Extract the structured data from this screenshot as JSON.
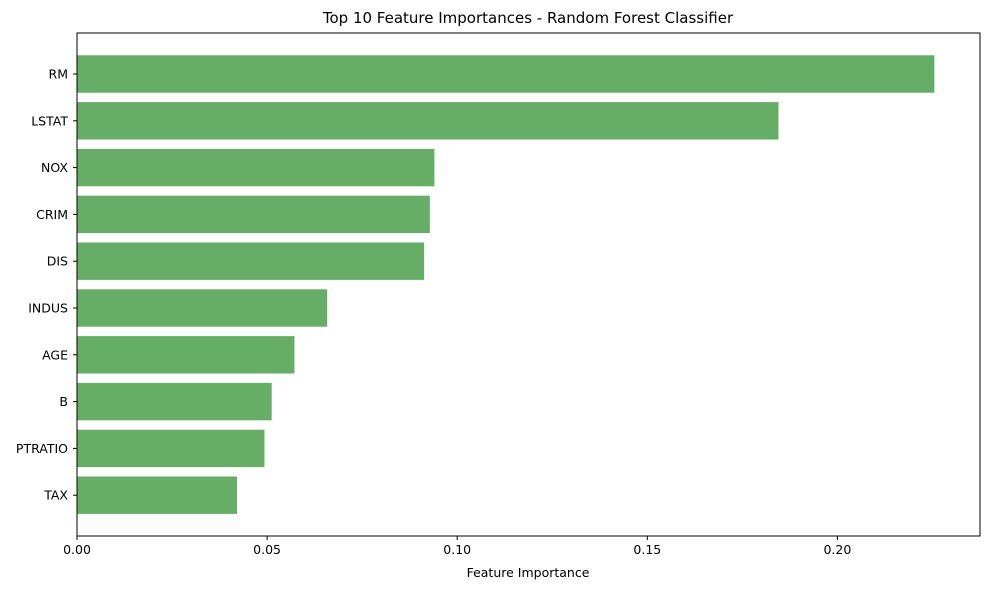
{
  "chart_data": {
    "type": "bar",
    "orientation": "horizontal",
    "title": "Top 10 Feature Importances - Random Forest Classifier",
    "xlabel": "Feature Importance",
    "ylabel": "",
    "categories": [
      "RM",
      "LSTAT",
      "NOX",
      "CRIM",
      "DIS",
      "INDUS",
      "AGE",
      "B",
      "PTRATIO",
      "TAX"
    ],
    "values": [
      0.2255,
      0.1845,
      0.094,
      0.0928,
      0.0913,
      0.0658,
      0.0572,
      0.0512,
      0.0493,
      0.0421
    ],
    "xlim": [
      0,
      0.2375
    ],
    "xticks": [
      0.0,
      0.05,
      0.1,
      0.15,
      0.2
    ],
    "xtick_labels": [
      "0.00",
      "0.05",
      "0.10",
      "0.15",
      "0.20"
    ],
    "bar_color": "#66ad66",
    "grid": false,
    "legend": "none"
  }
}
